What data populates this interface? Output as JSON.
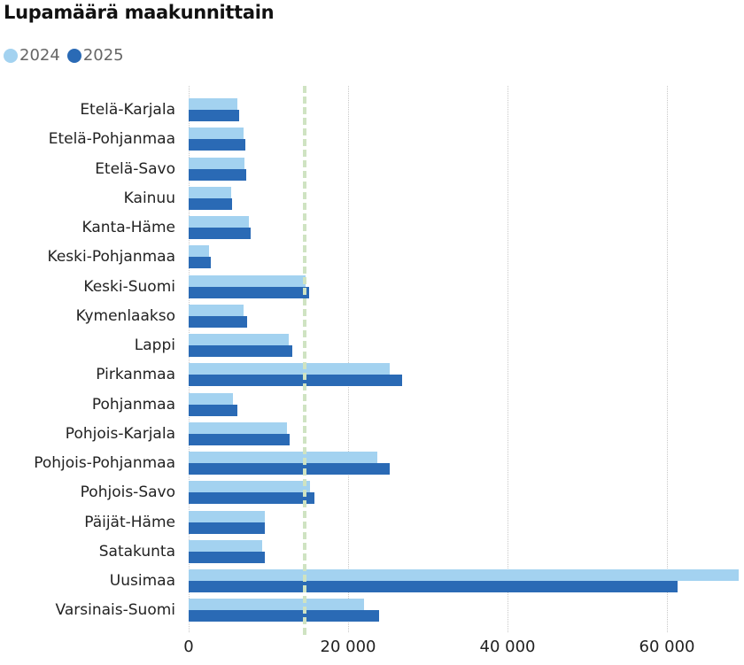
{
  "title": "Lupamäärä maakunnittain",
  "legend": [
    {
      "label": "2024",
      "color": "#a3d2f0"
    },
    {
      "label": "2025",
      "color": "#2a6ab5"
    }
  ],
  "colors": {
    "series_2024": "#a3d2f0",
    "series_2025": "#2a6ab5",
    "average_line": "#cfe3c2",
    "gridline": "#c8c8c8"
  },
  "chart_data": {
    "type": "bar",
    "orientation": "horizontal",
    "title": "Lupamäärä maakunnittain",
    "xlabel": "",
    "ylabel": "",
    "categories": [
      "Etelä-Karjala",
      "Etelä-Pohjanmaa",
      "Etelä-Savo",
      "Kainuu",
      "Kanta-Häme",
      "Keski-Pohjanmaa",
      "Keski-Suomi",
      "Kymenlaakso",
      "Lappi",
      "Pirkanmaa",
      "Pohjanmaa",
      "Pohjois-Karjala",
      "Pohjois-Pohjanmaa",
      "Pohjois-Savo",
      "Päijät-Häme",
      "Satakunta",
      "Uusimaa",
      "Varsinais-Suomi"
    ],
    "series": [
      {
        "name": "2024",
        "values": [
          6100,
          6900,
          7000,
          5300,
          7500,
          2600,
          14700,
          6900,
          12600,
          25200,
          5600,
          12300,
          23700,
          15200,
          9500,
          9200,
          69000,
          22000
        ]
      },
      {
        "name": "2025",
        "values": [
          6300,
          7100,
          7200,
          5400,
          7800,
          2800,
          15100,
          7300,
          13000,
          26800,
          6100,
          12700,
          25200,
          15800,
          9600,
          9500,
          61300,
          23900
        ]
      }
    ],
    "reference_line": {
      "style": "dashed",
      "value": 14600,
      "label": ""
    },
    "xticks": [
      "0",
      "20 000",
      "40 000",
      "60 000"
    ],
    "xtick_values": [
      0,
      20000,
      40000,
      60000
    ],
    "xlim": [
      0,
      69000
    ],
    "grid": true,
    "legend_position": "top-left"
  }
}
